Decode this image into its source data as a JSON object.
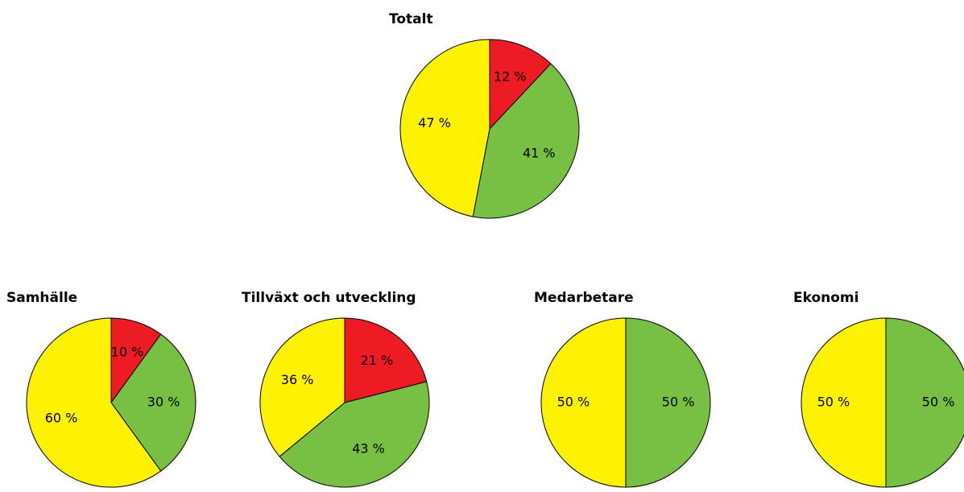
{
  "chart_data": [
    {
      "type": "pie",
      "title": "Totalt",
      "values": [
        12,
        41,
        47
      ],
      "value_labels": [
        "12 %",
        "41 %",
        "47 %"
      ],
      "colors": [
        "#ed1c24",
        "#77c043",
        "#fff200"
      ]
    },
    {
      "type": "pie",
      "title": "Samhälle",
      "values": [
        10,
        30,
        60
      ],
      "value_labels": [
        "10 %",
        "30 %",
        "60 %"
      ],
      "colors": [
        "#ed1c24",
        "#77c043",
        "#fff200"
      ]
    },
    {
      "type": "pie",
      "title": "Tillväxt och utveckling",
      "values": [
        21,
        43,
        36
      ],
      "value_labels": [
        "21 %",
        "43 %",
        "36 %"
      ],
      "colors": [
        "#ed1c24",
        "#77c043",
        "#fff200"
      ]
    },
    {
      "type": "pie",
      "title": "Medarbetare",
      "values": [
        50,
        50
      ],
      "value_labels": [
        "50 %",
        "50 %"
      ],
      "colors": [
        "#77c043",
        "#fff200"
      ]
    },
    {
      "type": "pie",
      "title": "Ekonomi",
      "values": [
        50,
        50
      ],
      "value_labels": [
        "50 %",
        "50 %"
      ],
      "colors": [
        "#77c043",
        "#fff200"
      ]
    }
  ]
}
